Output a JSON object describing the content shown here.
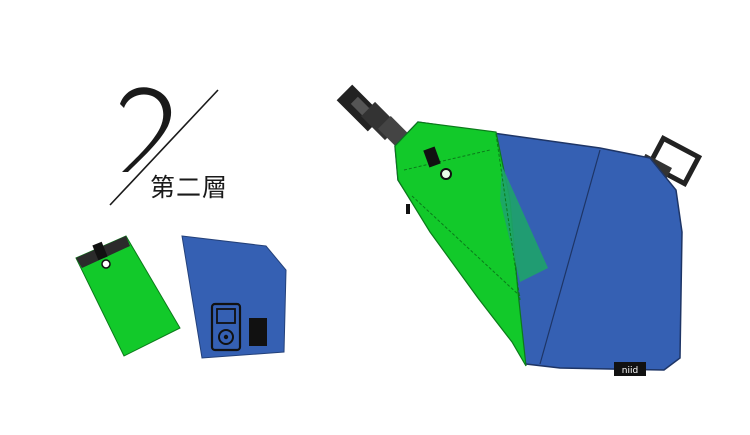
{
  "heading": {
    "number": "2",
    "layer_label": "第二層"
  },
  "bag": {
    "brand_tag": "niid"
  },
  "colors": {
    "green": "#12c92a",
    "blue": "#3560b3",
    "dark": "#111111",
    "translucent_pocket": "#1ea36a"
  }
}
